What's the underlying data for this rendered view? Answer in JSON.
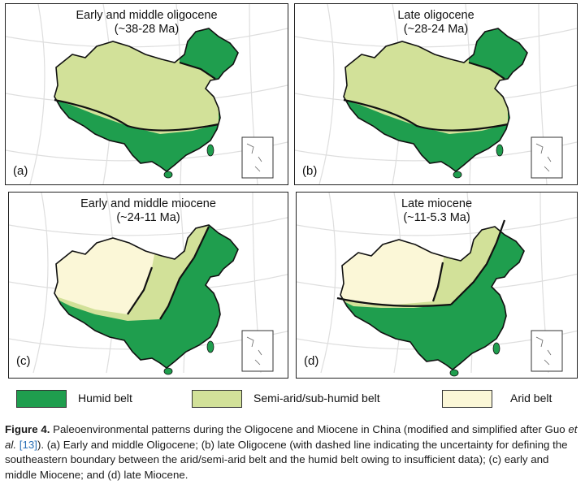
{
  "colors": {
    "humid": "#1f9e4e",
    "semi_arid": "#d2e199",
    "arid": "#fbf7d7",
    "boundary": "#111111",
    "grid": "#dedede"
  },
  "panels": [
    {
      "letter": "(a)",
      "title_line1": "Early and middle oligocene",
      "title_line2": "(~38-28 Ma)"
    },
    {
      "letter": "(b)",
      "title_line1": "Late oligocene",
      "title_line2": "(~28-24 Ma)"
    },
    {
      "letter": "(c)",
      "title_line1": "Early and middle miocene",
      "title_line2": "(~24-11 Ma)"
    },
    {
      "letter": "(d)",
      "title_line1": "Late miocene",
      "title_line2": "(~11-5.3 Ma)"
    }
  ],
  "legend": {
    "humid": "Humid belt",
    "semi_arid": "Semi-arid/sub-humid belt",
    "arid": "Arid belt"
  },
  "caption": {
    "label": "Figure 4.",
    "text_part1": " Paleoenvironmental patterns during the Oligocene and Miocene in China (modified and simplified after Guo ",
    "etal": "et al.",
    "text_part2": " ",
    "ref": "[13]",
    "text_part3": "). (a) Early and middle Oligocene; (b) late Oligocene (with dashed line indicating the uncertainty for defining the southeastern boundary between the arid/semi-arid belt and the humid belt owing to insufficient data); (c) early and middle Miocene; and (d) late Miocene."
  }
}
